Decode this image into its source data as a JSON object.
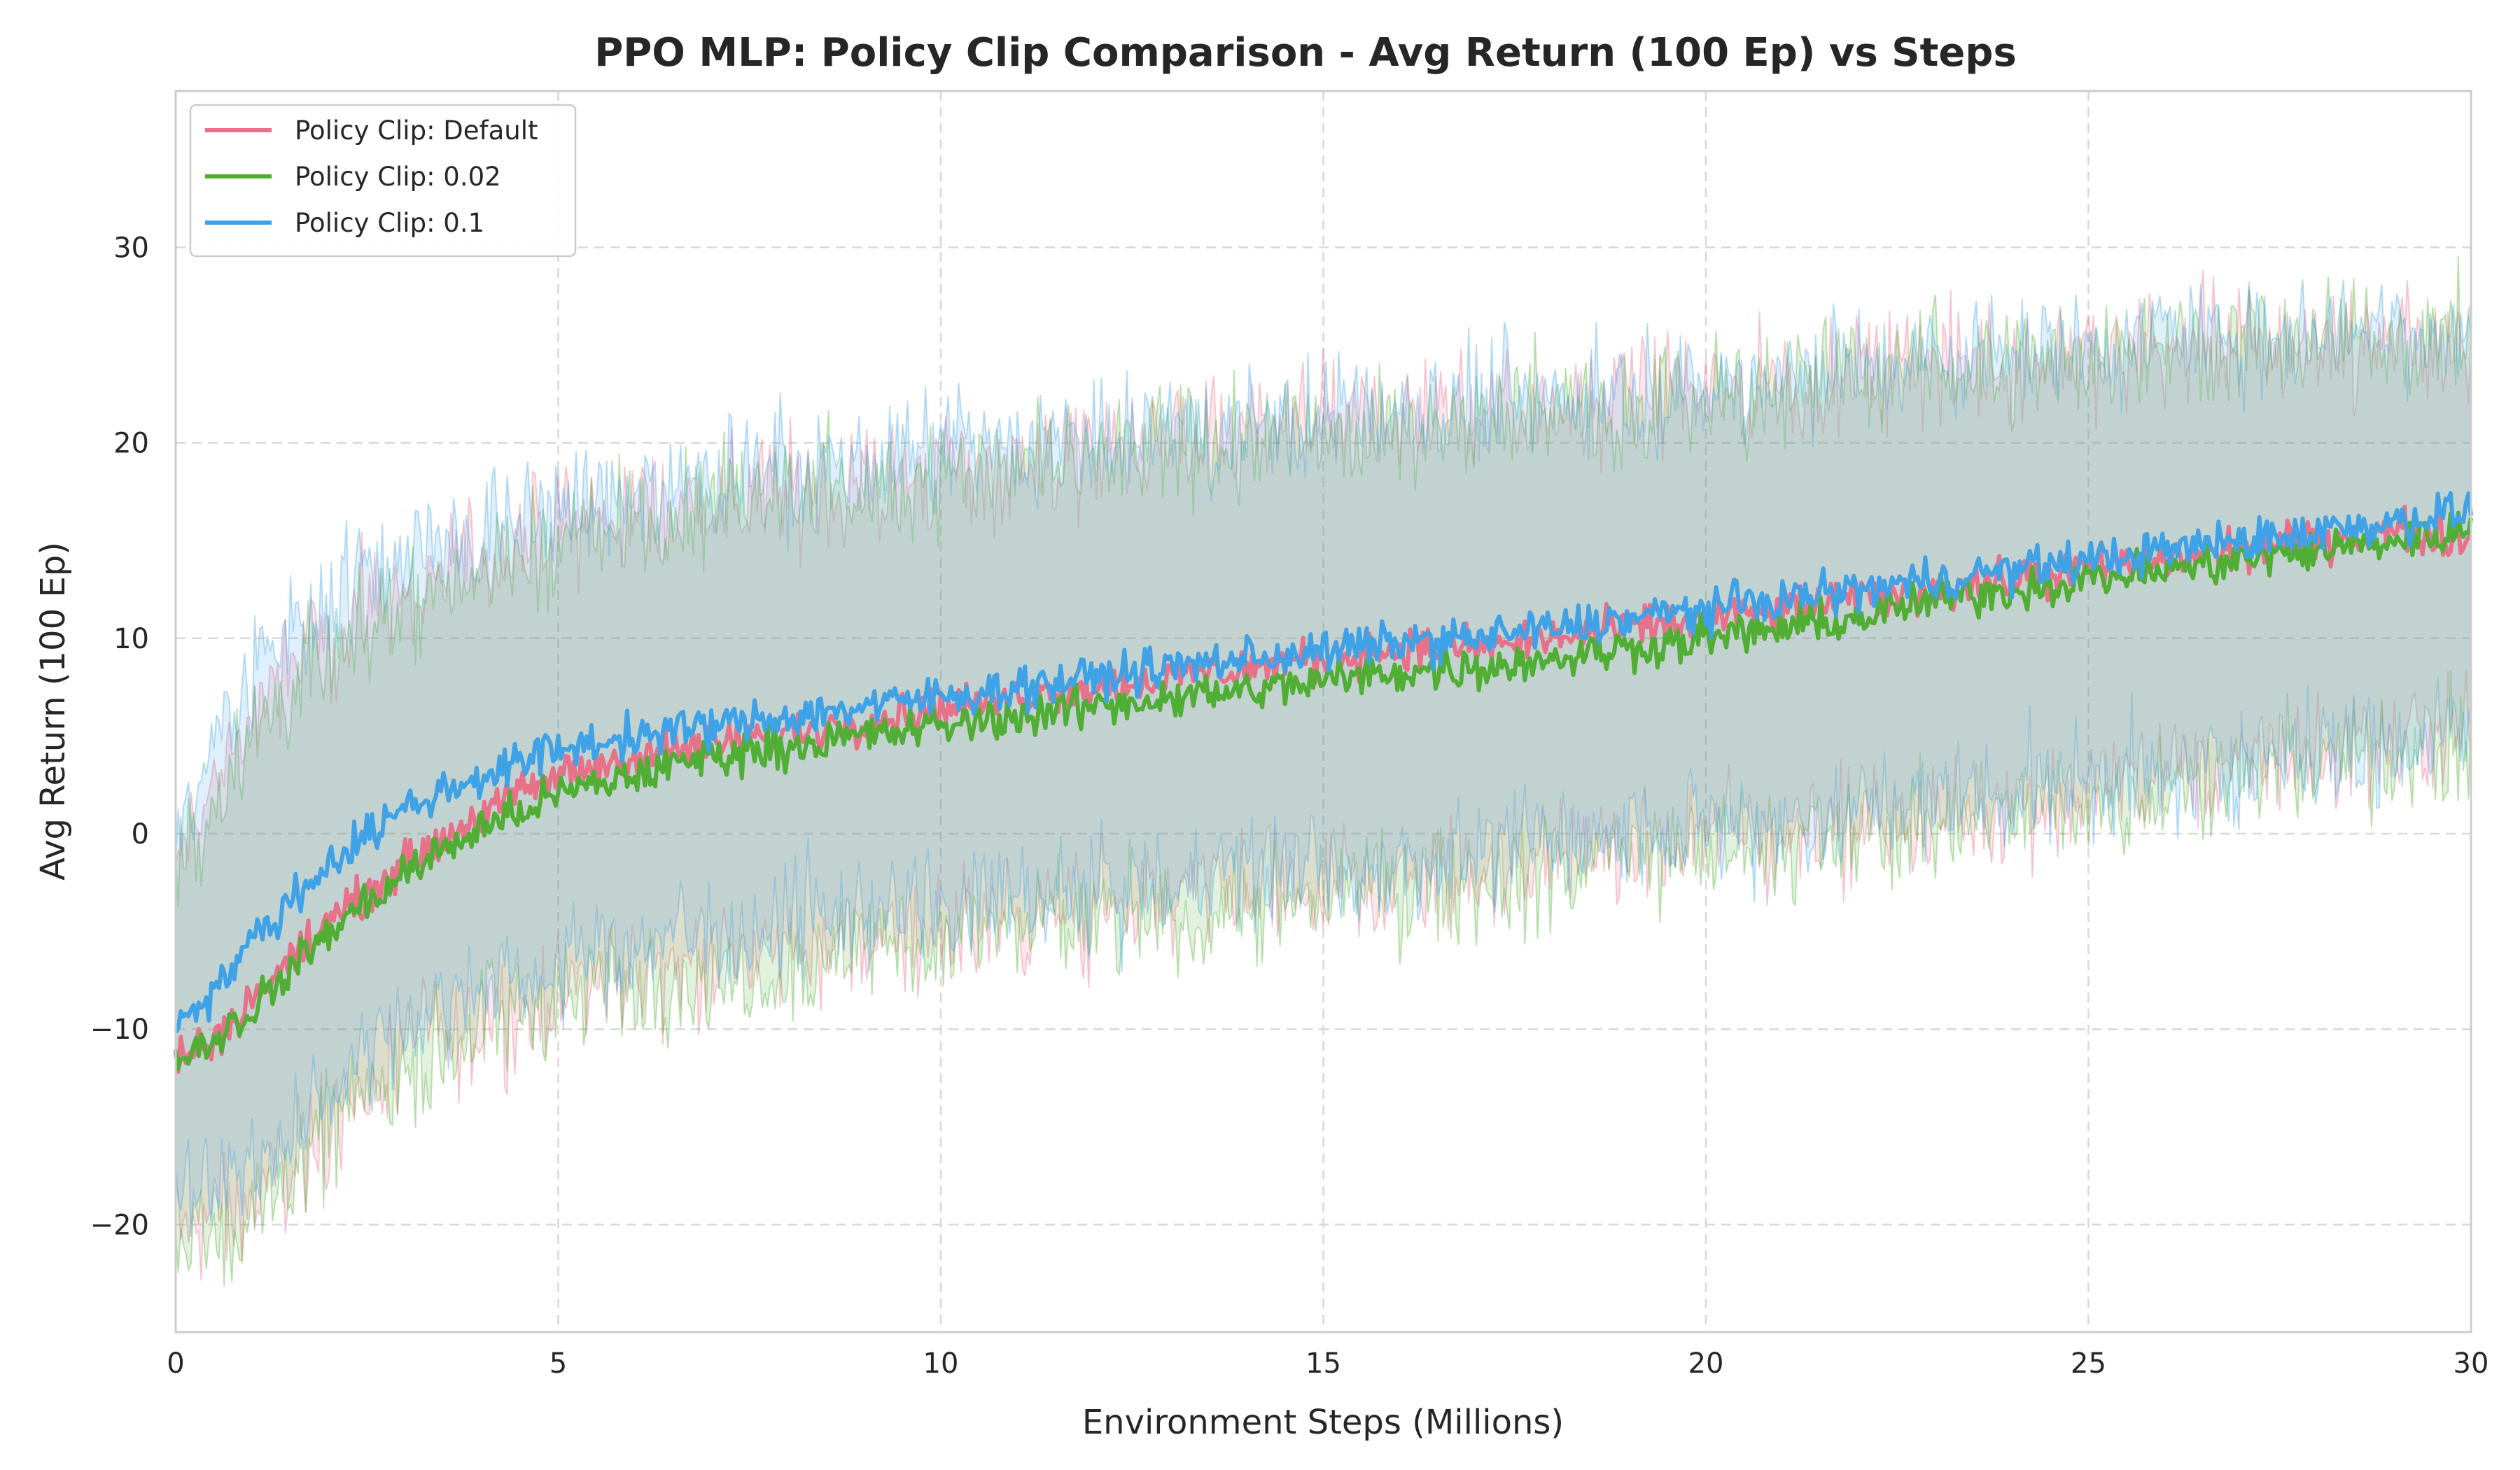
{
  "chart_data": {
    "type": "line",
    "title": "PPO MLP: Policy Clip Comparison - Avg Return (100 Ep) vs Steps",
    "xlabel": "Environment Steps (Millions)",
    "ylabel": "Avg Return (100 Ep)",
    "xlim": [
      0,
      30
    ],
    "ylim": [
      -25.5,
      38
    ],
    "xticks": [
      0,
      5,
      10,
      15,
      20,
      25,
      30
    ],
    "yticks": [
      -20,
      -10,
      0,
      10,
      20,
      30
    ],
    "grid": true,
    "legend_position": "top-left",
    "series": [
      {
        "name": "Policy Clip: Default",
        "color": "#e8718a",
        "x": [
          0,
          0.5,
          1,
          1.5,
          2,
          2.5,
          3,
          4,
          5,
          6,
          7,
          8,
          9,
          10,
          11,
          12,
          13,
          14,
          15,
          16,
          17,
          18,
          19,
          20,
          21,
          22,
          23,
          24,
          25,
          26,
          27,
          28,
          29,
          30
        ],
        "mean": [
          -11.5,
          -10.5,
          -8.5,
          -6.5,
          -4.5,
          -3,
          -1.5,
          1,
          3,
          4,
          4.5,
          5.2,
          5.8,
          6.5,
          7,
          7.5,
          8,
          8.5,
          9,
          9.5,
          9.5,
          10,
          10.5,
          11,
          11.5,
          12,
          12.5,
          13,
          13.5,
          14,
          14.5,
          15,
          15.5,
          15
        ],
        "upper": [
          -2,
          3,
          6,
          8.5,
          10,
          11.5,
          12.5,
          14,
          15.5,
          16.5,
          17,
          17.5,
          18,
          18.5,
          19,
          19.5,
          20,
          20.5,
          21,
          21.5,
          22,
          22,
          22.5,
          23,
          23,
          23.5,
          24,
          24,
          24.5,
          25,
          25,
          25,
          25.5,
          25
        ],
        "lower": [
          -20,
          -20,
          -19,
          -17,
          -15,
          -13,
          -11.5,
          -9.5,
          -8,
          -7,
          -6.5,
          -6,
          -5.5,
          -5,
          -4.5,
          -4,
          -3.5,
          -3,
          -3,
          -2.5,
          -2,
          -1.5,
          -1,
          -0.5,
          0,
          0.5,
          1,
          1.5,
          2,
          3,
          3.5,
          4,
          4.5,
          5
        ]
      },
      {
        "name": "Policy Clip: 0.02",
        "color": "#4fae33",
        "x": [
          0,
          0.5,
          1,
          1.5,
          2,
          2.5,
          3,
          4,
          5,
          6,
          7,
          8,
          9,
          10,
          11,
          12,
          13,
          14,
          15,
          16,
          17,
          18,
          19,
          20,
          21,
          22,
          23,
          24,
          25,
          26,
          27,
          28,
          29,
          30
        ],
        "mean": [
          -11.5,
          -10.5,
          -9,
          -7,
          -5,
          -3.5,
          -2,
          0.3,
          2,
          3,
          4,
          4.5,
          5,
          5.5,
          6,
          6.5,
          7,
          7.3,
          7.8,
          8.3,
          8.5,
          9,
          9.5,
          10,
          10.5,
          11,
          12,
          12.5,
          13,
          13.5,
          14,
          14.5,
          15,
          15.5
        ],
        "upper": [
          -2.5,
          2,
          5,
          7.5,
          9,
          10.5,
          12,
          13.5,
          15,
          16,
          16.5,
          17.5,
          18,
          18.5,
          19,
          19,
          19.5,
          20,
          20.5,
          21,
          21.5,
          22,
          22,
          22.5,
          23,
          23.5,
          24,
          24,
          24.5,
          25,
          25,
          25.5,
          25.5,
          25.5
        ],
        "lower": [
          -20.5,
          -20.5,
          -19.5,
          -17.5,
          -15.5,
          -13.5,
          -12,
          -10,
          -8.5,
          -7.5,
          -7,
          -6.5,
          -6,
          -5.5,
          -5,
          -4.5,
          -4,
          -4,
          -3.5,
          -3,
          -2.5,
          -2,
          -1.5,
          -1,
          -0.5,
          0,
          0.5,
          1,
          1.5,
          2.5,
          3,
          3.5,
          4,
          4.5
        ]
      },
      {
        "name": "Policy Clip: 0.1",
        "color": "#3fa2e6",
        "x": [
          0,
          0.5,
          1,
          1.5,
          2,
          2.5,
          3,
          4,
          5,
          6,
          7,
          8,
          9,
          10,
          11,
          12,
          13,
          14,
          15,
          16,
          17,
          18,
          19,
          20,
          21,
          22,
          23,
          24,
          25,
          26,
          27,
          28,
          29,
          30
        ],
        "mean": [
          -9.5,
          -8,
          -5.5,
          -3.5,
          -1.5,
          0,
          1.3,
          3,
          4.3,
          5,
          5.5,
          6,
          6.5,
          7,
          7.5,
          8,
          8.5,
          9,
          9.3,
          9.8,
          10,
          10.5,
          11,
          11.5,
          12,
          12.5,
          13,
          13.5,
          14,
          14.5,
          15,
          15.5,
          16,
          16.5
        ],
        "upper": [
          0,
          4.5,
          8,
          10,
          12,
          13.5,
          14.5,
          15.5,
          16.5,
          17.5,
          18,
          18.5,
          19,
          19.5,
          20,
          20,
          20.5,
          21,
          21.5,
          21.5,
          22,
          22.5,
          23,
          23,
          23.5,
          24,
          24.5,
          25,
          25,
          25.5,
          25.5,
          26,
          26,
          26
        ],
        "lower": [
          -18.5,
          -18,
          -17,
          -15,
          -13,
          -11,
          -9.5,
          -8,
          -6.5,
          -5.5,
          -5,
          -4.5,
          -4,
          -3.5,
          -3.5,
          -3,
          -2.5,
          -2,
          -2,
          -1.5,
          -1,
          -0.5,
          0,
          0,
          0.5,
          1,
          1.5,
          2,
          2.5,
          3,
          3.5,
          4,
          4.5,
          5
        ]
      }
    ]
  }
}
